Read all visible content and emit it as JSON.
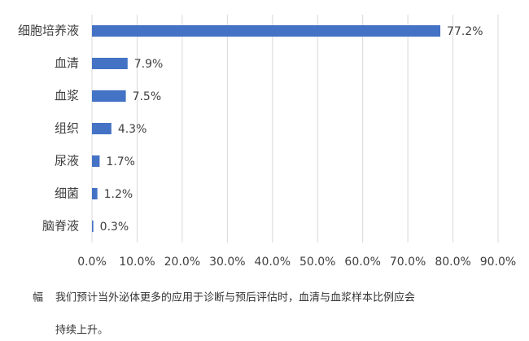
{
  "chart_data": {
    "type": "bar",
    "orientation": "horizontal",
    "categories": [
      "细胞培养液",
      "血清",
      "血浆",
      "组织",
      "尿液",
      "细菌",
      "脑脊液"
    ],
    "values": [
      77.2,
      7.9,
      7.5,
      4.3,
      1.7,
      1.2,
      0.3
    ],
    "value_labels": [
      "77.2%",
      "7.9%",
      "7.5%",
      "4.3%",
      "1.7%",
      "1.2%",
      "0.3%"
    ],
    "color": "#4472c4",
    "xlim": [
      0,
      90
    ],
    "xticks": [
      {
        "value": 0,
        "label": "0.0%"
      },
      {
        "value": 10,
        "label": "10.0%"
      },
      {
        "value": 20,
        "label": "20.0%"
      },
      {
        "value": 30,
        "label": "30.0%"
      },
      {
        "value": 40,
        "label": "40.0%"
      },
      {
        "value": 50,
        "label": "50.0%"
      },
      {
        "value": 60,
        "label": "60.0%"
      },
      {
        "value": 70,
        "label": "70.0%"
      },
      {
        "value": 80,
        "label": "80.0%"
      },
      {
        "value": 90,
        "label": "90.0%"
      }
    ],
    "grid": true
  },
  "caption": [
    "幅",
    "我们预计当外泌体更多的应用于诊断与预后评估时，血清与血浆样本比例应会",
    "持续上升。"
  ]
}
